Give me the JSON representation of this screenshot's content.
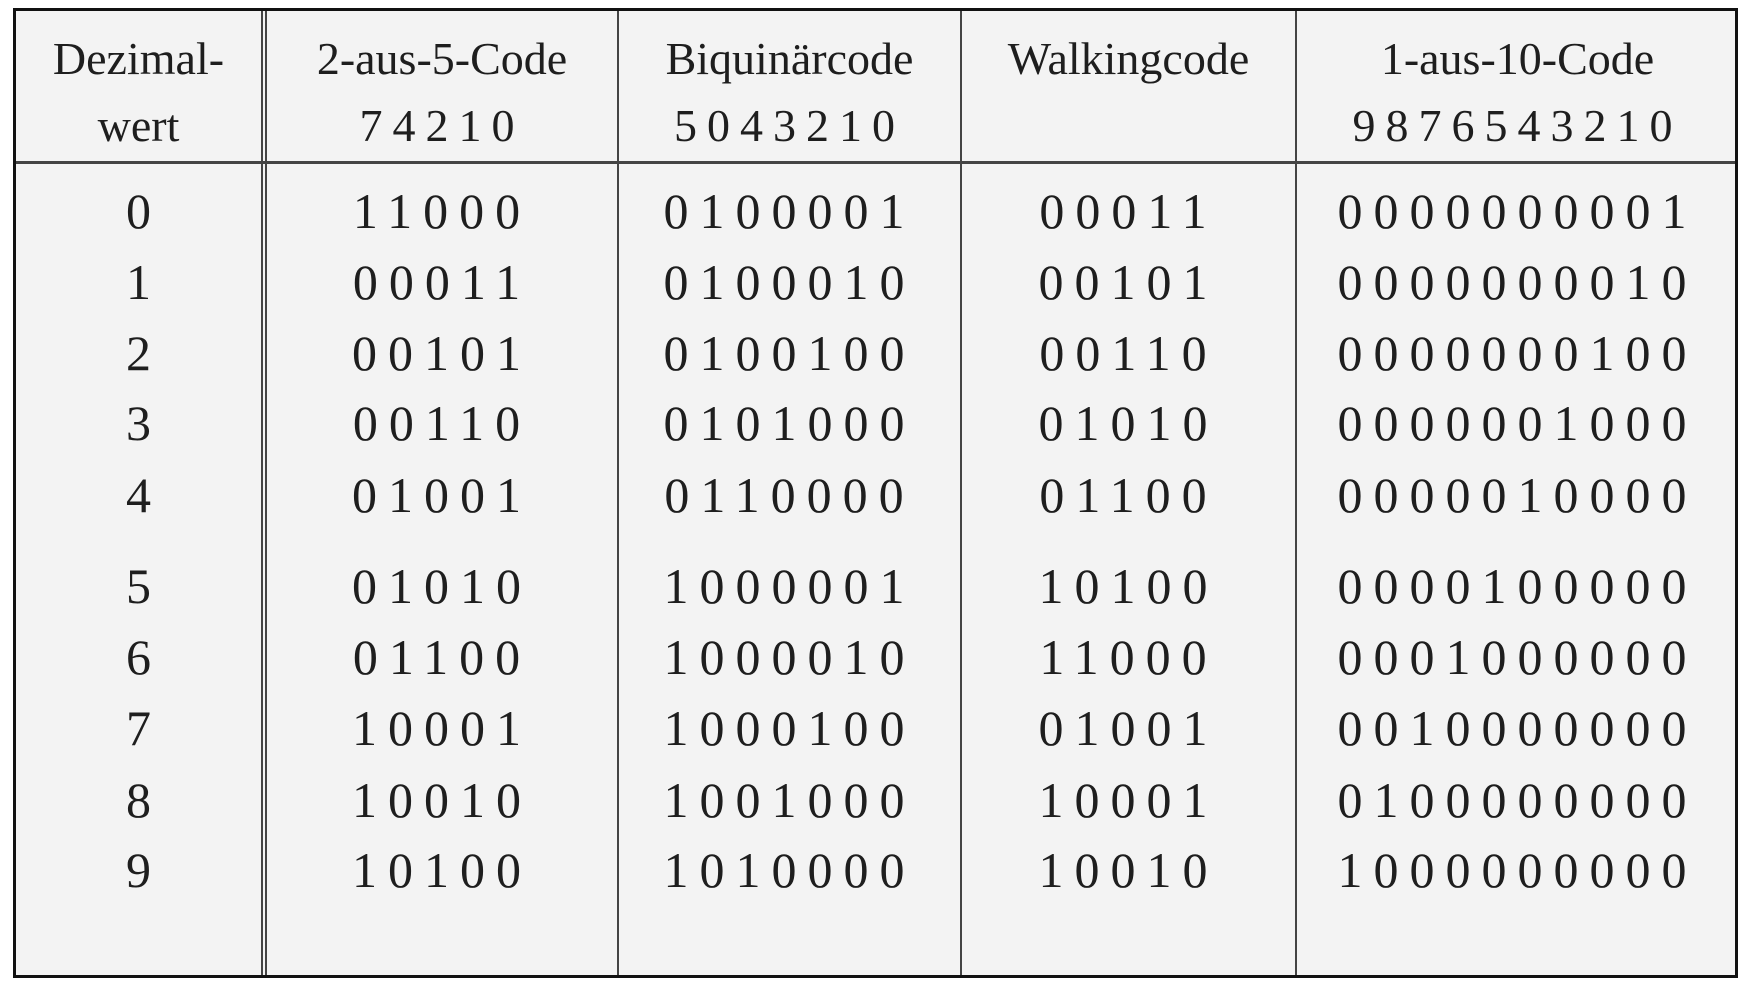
{
  "table": {
    "headers": [
      {
        "title": "Dezimal-",
        "sub": "wert"
      },
      {
        "title": "2-aus-5-Code",
        "sub": "74210"
      },
      {
        "title": "Biquinärcode",
        "sub": "5043210"
      },
      {
        "title": "Walkingcode",
        "sub": ""
      },
      {
        "title": "1-aus-10-Code",
        "sub": "9876543210"
      }
    ],
    "rows": [
      [
        "0",
        "11000",
        "0100001",
        "00011",
        "0000000001"
      ],
      [
        "1",
        "00011",
        "0100010",
        "00101",
        "0000000010"
      ],
      [
        "2",
        "00101",
        "0100100",
        "00110",
        "0000000100"
      ],
      [
        "3",
        "00110",
        "0101000",
        "01010",
        "0000001000"
      ],
      [
        "4",
        "01001",
        "0110000",
        "01100",
        "0000010000"
      ],
      [
        "5",
        "01010",
        "1000001",
        "10100",
        "0000100000"
      ],
      [
        "6",
        "01100",
        "1000010",
        "11000",
        "0001000000"
      ],
      [
        "7",
        "10001",
        "1000100",
        "01001",
        "0010000000"
      ],
      [
        "8",
        "10010",
        "1001000",
        "10001",
        "0100000000"
      ],
      [
        "9",
        "10100",
        "1010000",
        "10010",
        "1000000000"
      ]
    ]
  }
}
